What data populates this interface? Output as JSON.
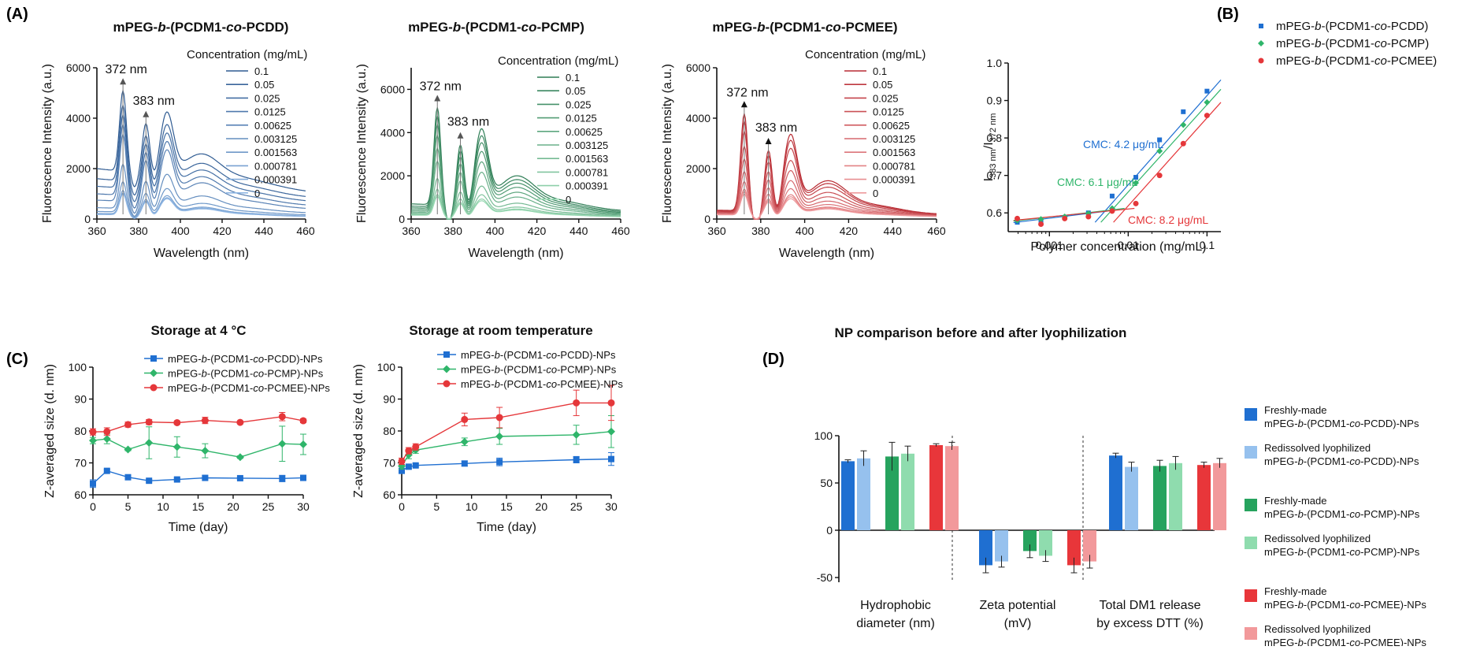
{
  "panel_labels": {
    "A": "(A)",
    "B": "(B)",
    "C": "(C)",
    "D": "(D)"
  },
  "spectra_common": {
    "xlabel": "Wavelength (nm)",
    "ylabel": "Fluorescence Intensity (a.u.)",
    "legend_title": "Concentration (mg/mL)",
    "concentrations": [
      "0.1",
      "0.05",
      "0.025",
      "0.0125",
      "0.00625",
      "0.003125",
      "0.001563",
      "0.000781",
      "0.000391",
      "0"
    ],
    "peak_labels": [
      "372 nm",
      "383 nm"
    ]
  },
  "chart_data": [
    {
      "type": "line",
      "panel": "A1",
      "title_parts": [
        "mPEG-",
        "b",
        "-(PCDM1-",
        "co",
        "-PCDD)"
      ],
      "xlim": [
        360,
        460
      ],
      "xticks": [
        360,
        380,
        400,
        420,
        440,
        460
      ],
      "ylim": [
        0,
        6000
      ],
      "yticks": [
        0,
        2000,
        4000,
        6000
      ],
      "color_dark": "#2f5b92",
      "color_light": "#8fb6e3",
      "series": [
        {
          "name": "0.1",
          "peak": 5200,
          "base": 2000
        },
        {
          "name": "0.05",
          "peak": 4600,
          "base": 1600
        },
        {
          "name": "0.025",
          "peak": 4200,
          "base": 1300
        },
        {
          "name": "0.0125",
          "peak": 3800,
          "base": 1000
        },
        {
          "name": "0.00625",
          "peak": 3400,
          "base": 750
        },
        {
          "name": "0.003125",
          "peak": 2200,
          "base": 450
        },
        {
          "name": "0.001563",
          "peak": 1500,
          "base": 300
        },
        {
          "name": "0.000781",
          "peak": 1150,
          "base": 220
        },
        {
          "name": "0.000391",
          "peak": 1050,
          "base": 200
        },
        {
          "name": "0",
          "peak": 1000,
          "base": 180
        }
      ]
    },
    {
      "type": "line",
      "panel": "A2",
      "title_parts": [
        "mPEG-",
        "b",
        "-(PCDM1-",
        "co",
        "-PCMP)"
      ],
      "xlim": [
        360,
        460
      ],
      "xticks": [
        360,
        380,
        400,
        420,
        440,
        460
      ],
      "ylim": [
        0,
        7000
      ],
      "yticks": [
        0,
        2000,
        4000,
        6000
      ],
      "color_dark": "#2e7d55",
      "color_light": "#9ad9b4",
      "series": [
        {
          "name": "0.1",
          "peak": 5200,
          "base": 700
        },
        {
          "name": "0.05",
          "peak": 4800,
          "base": 600
        },
        {
          "name": "0.025",
          "peak": 4400,
          "base": 520
        },
        {
          "name": "0.0125",
          "peak": 3900,
          "base": 450
        },
        {
          "name": "0.00625",
          "peak": 3300,
          "base": 380
        },
        {
          "name": "0.003125",
          "peak": 2700,
          "base": 320
        },
        {
          "name": "0.001563",
          "peak": 1900,
          "base": 260
        },
        {
          "name": "0.000781",
          "peak": 1400,
          "base": 220
        },
        {
          "name": "0.000391",
          "peak": 1150,
          "base": 200
        },
        {
          "name": "0",
          "peak": 1050,
          "base": 180
        }
      ]
    },
    {
      "type": "line",
      "panel": "A3",
      "title_parts": [
        "mPEG-",
        "b",
        "-(PCDM1-",
        "co",
        "-PCMEE)"
      ],
      "xlim": [
        360,
        460
      ],
      "xticks": [
        360,
        380,
        400,
        420,
        440,
        460
      ],
      "ylim": [
        0,
        6000
      ],
      "yticks": [
        0,
        2000,
        4000,
        6000
      ],
      "color_dark": "#b82c33",
      "color_light": "#ee9a9d",
      "series": [
        {
          "name": "0.1",
          "peak": 4200,
          "base": 350
        },
        {
          "name": "0.05",
          "peak": 3900,
          "base": 320
        },
        {
          "name": "0.025",
          "peak": 3500,
          "base": 290
        },
        {
          "name": "0.0125",
          "peak": 2900,
          "base": 260
        },
        {
          "name": "0.00625",
          "peak": 2400,
          "base": 230
        },
        {
          "name": "0.003125",
          "peak": 1900,
          "base": 210
        },
        {
          "name": "0.001563",
          "peak": 1500,
          "base": 200
        },
        {
          "name": "0.000781",
          "peak": 1200,
          "base": 190
        },
        {
          "name": "0.000391",
          "peak": 1100,
          "base": 180
        },
        {
          "name": "0",
          "peak": 1000,
          "base": 170
        }
      ]
    },
    {
      "type": "scatter",
      "panel": "B",
      "xlabel": "Polymer concentration (mg/mL)",
      "ylabel_parts": [
        "I",
        "383 nm",
        "/I",
        "372 nm"
      ],
      "xscale": "log",
      "xlim": [
        0.0003,
        0.15
      ],
      "xtick_labels": [
        "0.001",
        "0.01",
        "0.1"
      ],
      "xticks": [
        0.001,
        0.01,
        0.1
      ],
      "ylim": [
        0.55,
        1.0
      ],
      "yticks": [
        0.6,
        0.7,
        0.8,
        0.9,
        1.0
      ],
      "series": [
        {
          "name": "mPEG-b-(PCDM1-co-PCDD)",
          "name_parts": [
            "mPEG-",
            "b",
            "-(PCDM1-",
            "co",
            "-PCDD)"
          ],
          "color": "#1f6fd1",
          "marker": "square",
          "x": [
            0.000391,
            0.000781,
            0.001563,
            0.003125,
            0.00625,
            0.0125,
            0.025,
            0.05,
            0.1
          ],
          "y": [
            0.575,
            0.58,
            0.588,
            0.6,
            0.645,
            0.695,
            0.795,
            0.87,
            0.925
          ]
        },
        {
          "name": "mPEG-b-(PCDM1-co-PCMP)",
          "name_parts": [
            "mPEG-",
            "b",
            "-(PCDM1-",
            "co",
            "-PCMP)"
          ],
          "color": "#2fb56a",
          "marker": "diamond",
          "x": [
            0.000391,
            0.000781,
            0.001563,
            0.003125,
            0.00625,
            0.0125,
            0.025,
            0.05,
            0.1
          ],
          "y": [
            0.58,
            0.583,
            0.59,
            0.598,
            0.612,
            0.68,
            0.765,
            0.835,
            0.895
          ]
        },
        {
          "name": "mPEG-b-(PCDM1-co-PCMEE)",
          "name_parts": [
            "mPEG-",
            "b",
            "-(PCDM1-",
            "co",
            "-PCMEE)"
          ],
          "color": "#e5373a",
          "marker": "circle",
          "x": [
            0.000391,
            0.000781,
            0.001563,
            0.003125,
            0.00625,
            0.0125,
            0.025,
            0.05,
            0.1
          ],
          "y": [
            0.585,
            0.57,
            0.585,
            0.59,
            0.605,
            0.625,
            0.7,
            0.785,
            0.86
          ]
        }
      ],
      "annotations": [
        "CMC: 4.2 μg/mL",
        "CMC: 6.1 μg/mL",
        "CMC: 8.2 μg/mL"
      ]
    },
    {
      "type": "line",
      "panel": "C1",
      "title": "Storage at 4 °C",
      "xlabel": "Time (day)",
      "ylabel": "Z-averaged size (d. nm)",
      "xlim": [
        0,
        30
      ],
      "xticks": [
        0,
        5,
        10,
        15,
        20,
        25,
        30
      ],
      "ylim": [
        60,
        100
      ],
      "yticks": [
        60,
        70,
        80,
        90,
        100
      ],
      "series": [
        {
          "name": "mPEG-b-(PCDM1-co-PCDD)-NPs",
          "name_parts": [
            "mPEG-",
            "b",
            "-(PCDM1-",
            "co",
            "-PCDD)-NPs"
          ],
          "color": "#1f6fd1",
          "marker": "square",
          "x": [
            0,
            2,
            5,
            8,
            12,
            16,
            21,
            27,
            30
          ],
          "y": [
            63.5,
            67.5,
            65.5,
            64.4,
            64.8,
            65.3,
            65.2,
            65.1,
            65.3
          ],
          "err": [
            1.2,
            0.4,
            0.4,
            0.4,
            0.4,
            0.6,
            0.3,
            1,
            0.8
          ]
        },
        {
          "name": "mPEG-b-(PCDM1-co-PCMP)-NPs",
          "name_parts": [
            "mPEG-",
            "b",
            "-(PCDM1-",
            "co",
            "-PCMP)-NPs"
          ],
          "color": "#2fb56a",
          "marker": "diamond",
          "x": [
            0,
            2,
            5,
            8,
            12,
            16,
            21,
            27,
            30
          ],
          "y": [
            77,
            77.5,
            74.2,
            76.3,
            75,
            73.8,
            71.8,
            76,
            75.8
          ],
          "err": [
            1,
            1.5,
            0.4,
            5,
            3.2,
            2.2,
            0.4,
            5.5,
            3.2
          ]
        },
        {
          "name": "mPEG-b-(PCDM1-co-PCMEE)-NPs",
          "name_parts": [
            "mPEG-",
            "b",
            "-(PCDM1-",
            "co",
            "-PCMEE)-NPs"
          ],
          "color": "#e5373a",
          "marker": "circle",
          "x": [
            0,
            2,
            5,
            8,
            12,
            16,
            21,
            27,
            30
          ],
          "y": [
            79.7,
            79.8,
            82,
            82.8,
            82.6,
            83.3,
            82.7,
            84.5,
            83.2
          ],
          "err": [
            1,
            1.2,
            0.8,
            0.8,
            0.5,
            1,
            0.4,
            1.3,
            0.6
          ]
        }
      ]
    },
    {
      "type": "line",
      "panel": "C2",
      "title": "Storage at room temperature",
      "xlabel": "Time (day)",
      "ylabel": "Z-averaged size (d. nm)",
      "xlim": [
        0,
        30
      ],
      "xticks": [
        0,
        5,
        10,
        15,
        20,
        25,
        30
      ],
      "ylim": [
        60,
        100
      ],
      "yticks": [
        60,
        70,
        80,
        90,
        100
      ],
      "series": [
        {
          "name": "mPEG-b-(PCDM1-co-PCDD)-NPs",
          "name_parts": [
            "mPEG-",
            "b",
            "-(PCDM1-",
            "co",
            "-PCDD)-NPs"
          ],
          "color": "#1f6fd1",
          "marker": "square",
          "x": [
            0,
            1,
            2,
            9,
            14,
            25,
            30
          ],
          "y": [
            67.5,
            68.8,
            69.2,
            69.8,
            70.3,
            71,
            71.2
          ],
          "err": [
            0.8,
            0.6,
            0.5,
            0.8,
            1.2,
            1,
            2
          ]
        },
        {
          "name": "mPEG-b-(PCDM1-co-PCMP)-NPs",
          "name_parts": [
            "mPEG-",
            "b",
            "-(PCDM1-",
            "co",
            "-PCMP)-NPs"
          ],
          "color": "#2fb56a",
          "marker": "diamond",
          "x": [
            0,
            1,
            2,
            9,
            14,
            25,
            30
          ],
          "y": [
            69,
            72.5,
            74,
            76.6,
            78.3,
            78.8,
            79.8
          ],
          "err": [
            1,
            1.2,
            1,
            1.2,
            2.5,
            3,
            5
          ]
        },
        {
          "name": "mPEG-b-(PCDM1-co-PCMEE)-NPs",
          "name_parts": [
            "mPEG-",
            "b",
            "-(PCDM1-",
            "co",
            "-PCMEE)-NPs"
          ],
          "color": "#e5373a",
          "marker": "circle",
          "x": [
            0,
            1,
            2,
            9,
            14,
            25,
            30
          ],
          "y": [
            70.5,
            73.8,
            75,
            83.6,
            84.2,
            88.8,
            88.8
          ],
          "err": [
            1,
            1,
            1,
            2,
            3.2,
            4,
            5.5
          ]
        }
      ]
    },
    {
      "type": "bar",
      "panel": "D",
      "title": "NP comparison before and after lyophilization",
      "ylim": [
        -55,
        105
      ],
      "yticks": [
        -50,
        0,
        50,
        100
      ],
      "groups": [
        {
          "label": [
            "Hydrophobic",
            "diameter (nm)"
          ],
          "values": [
            73,
            76,
            78,
            81,
            90,
            89
          ],
          "err": [
            1.5,
            8,
            15,
            8,
            1.5,
            4
          ]
        },
        {
          "label": [
            "Zeta potential",
            "(mV)"
          ],
          "values": [
            -37,
            -33,
            -22,
            -27,
            -37,
            -33
          ],
          "err": [
            8,
            6,
            7,
            6,
            8,
            7
          ]
        },
        {
          "label": [
            "Total DM1 release",
            "by excess DTT (%)"
          ],
          "values": [
            79,
            67,
            68,
            71,
            69,
            71
          ],
          "err": [
            2.5,
            5,
            6,
            7,
            3,
            5
          ]
        }
      ],
      "series": [
        {
          "line1": "Freshly-made",
          "line2_parts": [
            "mPEG-",
            "b",
            "-(PCDM1-",
            "co",
            "-PCDD)-NPs"
          ],
          "color": "#1f6fd1"
        },
        {
          "line1": "Redissolved lyophilized",
          "line2_parts": [
            "mPEG-",
            "b",
            "-(PCDM1-",
            "co",
            "-PCDD)-NPs"
          ],
          "color": "#96c1ee"
        },
        {
          "line1": "Freshly-made",
          "line2_parts": [
            "mPEG-",
            "b",
            "-(PCDM1-",
            "co",
            "-PCMP)-NPs"
          ],
          "color": "#26a35e"
        },
        {
          "line1": "Redissolved lyophilized",
          "line2_parts": [
            "mPEG-",
            "b",
            "-(PCDM1-",
            "co",
            "-PCMP)-NPs"
          ],
          "color": "#8fdcae"
        },
        {
          "line1": "Freshly-made",
          "line2_parts": [
            "mPEG-",
            "b",
            "-(PCDM1-",
            "co",
            "-PCMEE)-NPs"
          ],
          "color": "#e8363a"
        },
        {
          "line1": "Redissolved lyophilized",
          "line2_parts": [
            "mPEG-",
            "b",
            "-(PCDM1-",
            "co",
            "-PCMEE)-NPs"
          ],
          "color": "#f2999b"
        }
      ]
    }
  ]
}
